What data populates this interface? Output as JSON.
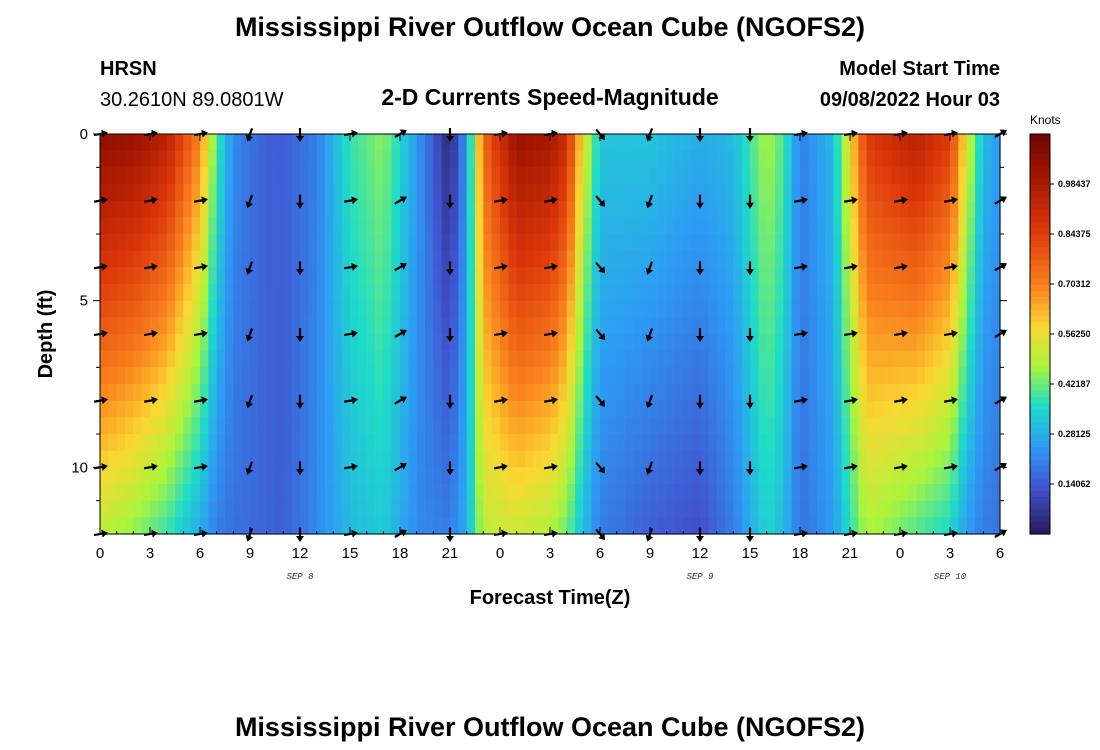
{
  "page": {
    "title": "Mississippi River Outflow Ocean Cube (NGOFS2)",
    "title_repeat": "Mississippi River Outflow Ocean Cube (NGOFS2)"
  },
  "header": {
    "station": "HRSN",
    "location": "30.2610N  89.0801W",
    "product": "2-D Currents Speed-Magnitude",
    "model_start_label": "Model Start Time",
    "model_start_value": "09/08/2022 Hour 03"
  },
  "chart_data": {
    "type": "heatmap",
    "title": "2-D Currents Speed-Magnitude",
    "xlabel": "Forecast Time(Z)",
    "ylabel": "Depth (ft)",
    "x_range": [
      0,
      54
    ],
    "y_range": [
      0,
      12
    ],
    "x_tick_values": [
      0,
      3,
      6,
      9,
      12,
      15,
      18,
      21,
      24,
      27,
      30,
      33,
      36,
      39,
      42,
      45,
      48,
      51,
      54
    ],
    "x_tick_labels": [
      "0",
      "3",
      "6",
      "9",
      "12",
      "15",
      "18",
      "21",
      "0",
      "3",
      "6",
      "9",
      "12",
      "15",
      "18",
      "21",
      "0",
      "3",
      "6"
    ],
    "y_tick_values": [
      0,
      5,
      10
    ],
    "y_tick_labels": [
      "0",
      "5",
      "10"
    ],
    "day_labels": [
      {
        "text": "SEP 8",
        "x": 12
      },
      {
        "text": "SEP 9",
        "x": 36
      },
      {
        "text": "SEP 10",
        "x": 51
      }
    ],
    "colorbar": {
      "unit": "Knots",
      "range": [
        0,
        1.125
      ],
      "tick_values": [
        0.140625,
        0.28125,
        0.421875,
        0.5625,
        0.703125,
        0.84375,
        0.984375
      ],
      "tick_labels": [
        "0.14062",
        "0.28125",
        "0.42187",
        "0.56250",
        "0.70312",
        "0.84375",
        "0.98437"
      ]
    },
    "speed_columns": [
      {
        "t": 0,
        "surface": 1.05,
        "bottom": 0.5
      },
      {
        "t": 2,
        "surface": 1.03,
        "bottom": 0.45
      },
      {
        "t": 4,
        "surface": 0.95,
        "bottom": 0.38
      },
      {
        "t": 6,
        "surface": 0.7,
        "bottom": 0.27
      },
      {
        "t": 7,
        "surface": 0.4,
        "bottom": 0.2
      },
      {
        "t": 8,
        "surface": 0.22,
        "bottom": 0.18
      },
      {
        "t": 10,
        "surface": 0.15,
        "bottom": 0.16
      },
      {
        "t": 11,
        "surface": 0.15,
        "bottom": 0.15
      },
      {
        "t": 13,
        "surface": 0.2,
        "bottom": 0.22
      },
      {
        "t": 15,
        "surface": 0.38,
        "bottom": 0.3
      },
      {
        "t": 17,
        "surface": 0.45,
        "bottom": 0.33
      },
      {
        "t": 19,
        "surface": 0.25,
        "bottom": 0.22
      },
      {
        "t": 21,
        "surface": 0.03,
        "bottom": 0.2
      },
      {
        "t": 22,
        "surface": 0.25,
        "bottom": 0.28
      },
      {
        "t": 23,
        "surface": 0.75,
        "bottom": 0.5
      },
      {
        "t": 25,
        "surface": 1.03,
        "bottom": 0.52
      },
      {
        "t": 27,
        "surface": 1.0,
        "bottom": 0.48
      },
      {
        "t": 28,
        "surface": 0.9,
        "bottom": 0.42
      },
      {
        "t": 29,
        "surface": 0.55,
        "bottom": 0.3
      },
      {
        "t": 30,
        "surface": 0.32,
        "bottom": 0.2
      },
      {
        "t": 33,
        "surface": 0.32,
        "bottom": 0.15
      },
      {
        "t": 36,
        "surface": 0.28,
        "bottom": 0.12
      },
      {
        "t": 38,
        "surface": 0.3,
        "bottom": 0.2
      },
      {
        "t": 40,
        "surface": 0.48,
        "bottom": 0.35
      },
      {
        "t": 41,
        "surface": 0.4,
        "bottom": 0.3
      },
      {
        "t": 42,
        "surface": 0.2,
        "bottom": 0.18
      },
      {
        "t": 44,
        "surface": 0.3,
        "bottom": 0.25
      },
      {
        "t": 46,
        "surface": 0.85,
        "bottom": 0.48
      },
      {
        "t": 49,
        "surface": 0.95,
        "bottom": 0.4
      },
      {
        "t": 51,
        "surface": 0.85,
        "bottom": 0.35
      },
      {
        "t": 52,
        "surface": 0.55,
        "bottom": 0.25
      },
      {
        "t": 53,
        "surface": 0.3,
        "bottom": 0.2
      },
      {
        "t": 54,
        "surface": 0.25,
        "bottom": 0.18
      }
    ],
    "arrow_times": [
      0,
      3,
      6,
      9,
      12,
      15,
      18,
      21,
      24,
      27,
      30,
      33,
      36,
      39,
      42,
      45,
      48,
      51,
      54
    ],
    "arrow_depths": [
      0,
      2,
      4,
      6,
      8,
      10,
      12
    ],
    "arrow_directions_deg": [
      80,
      80,
      80,
      200,
      180,
      80,
      60,
      180,
      80,
      80,
      140,
      200,
      180,
      180,
      80,
      80,
      80,
      80,
      60
    ]
  }
}
